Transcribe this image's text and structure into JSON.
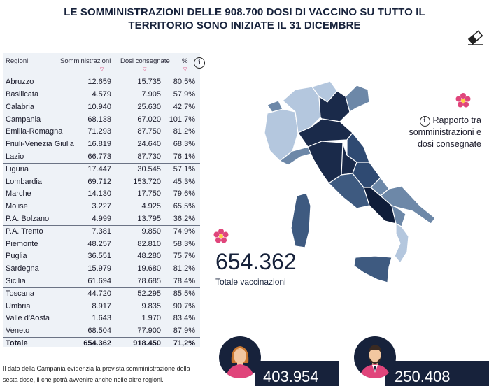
{
  "title_line1": "LE SOMMINISTRAZIONI DELLE 908.700 DOSI DI VACCINO SU TUTTO IL",
  "title_line2": "TERRITORIO SONO INIZIATE IL 31 DICEMBRE",
  "table": {
    "headers": [
      "Regioni",
      "Somministrazioni",
      "Dosi consegnate",
      "%"
    ],
    "rows": [
      {
        "region": "Abruzzo",
        "som": "12.659",
        "dosi": "15.735",
        "pct": "80,5%"
      },
      {
        "region": "Basilicata",
        "som": "4.579",
        "dosi": "7.905",
        "pct": "57,9%"
      },
      {
        "region": "Calabria",
        "som": "10.940",
        "dosi": "25.630",
        "pct": "42,7%"
      },
      {
        "region": "Campania",
        "som": "68.138",
        "dosi": "67.020",
        "pct": "101,7%"
      },
      {
        "region": "Emilia-Romagna",
        "som": "71.293",
        "dosi": "87.750",
        "pct": "81,2%"
      },
      {
        "region": "Friuli-Venezia Giulia",
        "som": "16.819",
        "dosi": "24.640",
        "pct": "68,3%"
      },
      {
        "region": "Lazio",
        "som": "66.773",
        "dosi": "87.730",
        "pct": "76,1%"
      },
      {
        "region": "Liguria",
        "som": "17.447",
        "dosi": "30.545",
        "pct": "57,1%"
      },
      {
        "region": "Lombardia",
        "som": "69.712",
        "dosi": "153.720",
        "pct": "45,3%"
      },
      {
        "region": "Marche",
        "som": "14.130",
        "dosi": "17.750",
        "pct": "79,6%"
      },
      {
        "region": "Molise",
        "som": "3.227",
        "dosi": "4.925",
        "pct": "65,5%"
      },
      {
        "region": "P.A. Bolzano",
        "som": "4.999",
        "dosi": "13.795",
        "pct": "36,2%"
      },
      {
        "region": "P.A. Trento",
        "som": "7.381",
        "dosi": "9.850",
        "pct": "74,9%"
      },
      {
        "region": "Piemonte",
        "som": "48.257",
        "dosi": "82.810",
        "pct": "58,3%"
      },
      {
        "region": "Puglia",
        "som": "36.551",
        "dosi": "48.280",
        "pct": "75,7%"
      },
      {
        "region": "Sardegna",
        "som": "15.979",
        "dosi": "19.680",
        "pct": "81,2%"
      },
      {
        "region": "Sicilia",
        "som": "61.694",
        "dosi": "78.685",
        "pct": "78,4%"
      },
      {
        "region": "Toscana",
        "som": "44.720",
        "dosi": "52.295",
        "pct": "85,5%"
      },
      {
        "region": "Umbria",
        "som": "8.917",
        "dosi": "9.835",
        "pct": "90,7%"
      },
      {
        "region": "Valle d'Aosta",
        "som": "1.643",
        "dosi": "1.970",
        "pct": "83,4%"
      },
      {
        "region": "Veneto",
        "som": "68.504",
        "dosi": "77.900",
        "pct": "87,9%"
      }
    ],
    "total": {
      "region": "Totale",
      "som": "654.362",
      "dosi": "918.450",
      "pct": "71,2%"
    }
  },
  "footnote_line1": "Il dato della Campania evidenzia la prevista somministrazione della",
  "footnote_line2": "sesta dose, il che potrà avvenire anche nelle altre regioni.",
  "legend_note_line1": "Rapporto tra",
  "legend_note_line2": "somministrazioni e",
  "legend_note_line3": "dosi consegnate",
  "total_vaccinations": {
    "value": "654.362",
    "label": "Totale vaccinazioni"
  },
  "women": {
    "value": "403.954"
  },
  "men": {
    "value": "250.408"
  },
  "colors": {
    "dark": "#17223b",
    "accent": "#e0457b",
    "table_bg": "#eef2f7",
    "map_light": "#b4c7de",
    "map_mid": "#6d88a8",
    "map_dark": "#1a2a4a"
  }
}
